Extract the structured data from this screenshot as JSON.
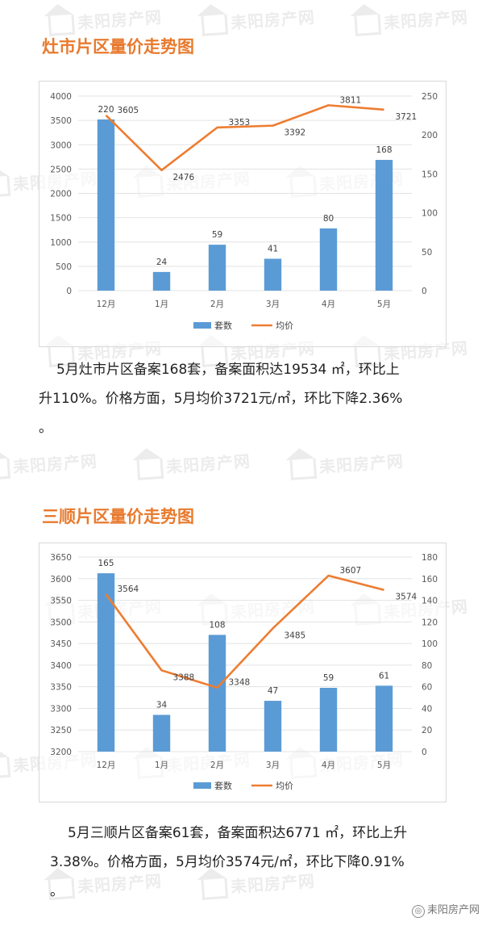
{
  "watermark_text": "耒阳房产网",
  "corner_logo": "耒阳房产网",
  "sections": [
    {
      "title": "灶市片区量价走势图",
      "paragraph_line1": "5月灶市片区备案168套，备案面积达19534 ㎡，环比上",
      "paragraph_line2": "升110%。价格方面，5月均价3721元/㎡，环比下降2.36%",
      "paragraph_line3": "。"
    },
    {
      "title": "三顺片区量价走势图",
      "paragraph_line1": "5月三顺片区备案61套，备案面积达6771 ㎡，环比上升",
      "paragraph_line2": "3.38%。价格方面，5月均价3574元/㎡，环比下降0.91%",
      "paragraph_line3": "。"
    }
  ],
  "chart_data": [
    {
      "type": "bar+line",
      "categories": [
        "12月",
        "1月",
        "2月",
        "3月",
        "4月",
        "5月"
      ],
      "series": [
        {
          "name": "套数",
          "kind": "bar",
          "axis": "right",
          "values": [
            220,
            24,
            59,
            41,
            80,
            168
          ],
          "color": "#5b9bd5"
        },
        {
          "name": "均价",
          "kind": "line",
          "axis": "left",
          "values": [
            3605,
            2476,
            3353,
            3392,
            3811,
            3721
          ],
          "color": "#ed7d31"
        }
      ],
      "left_axis": {
        "min": 0,
        "max": 4000,
        "ticks": [
          0,
          500,
          1000,
          1500,
          2000,
          2500,
          3000,
          3500,
          4000
        ]
      },
      "right_axis": {
        "min": 0,
        "max": 250,
        "ticks": [
          0,
          50,
          100,
          150,
          200,
          250
        ]
      },
      "legend_position": "bottom"
    },
    {
      "type": "bar+line",
      "categories": [
        "12月",
        "1月",
        "2月",
        "3月",
        "4月",
        "5月"
      ],
      "series": [
        {
          "name": "套数",
          "kind": "bar",
          "axis": "right",
          "values": [
            165,
            34,
            108,
            47,
            59,
            61
          ],
          "color": "#5b9bd5"
        },
        {
          "name": "均价",
          "kind": "line",
          "axis": "left",
          "values": [
            3564,
            3388,
            3348,
            3485,
            3607,
            3574
          ],
          "color": "#ed7d31"
        }
      ],
      "left_axis": {
        "min": 3200,
        "max": 3650,
        "ticks": [
          3200,
          3250,
          3300,
          3350,
          3400,
          3450,
          3500,
          3550,
          3600,
          3650
        ]
      },
      "right_axis": {
        "min": 0,
        "max": 180,
        "ticks": [
          0,
          20,
          40,
          60,
          80,
          100,
          120,
          140,
          160,
          180
        ]
      },
      "legend_position": "bottom"
    }
  ]
}
